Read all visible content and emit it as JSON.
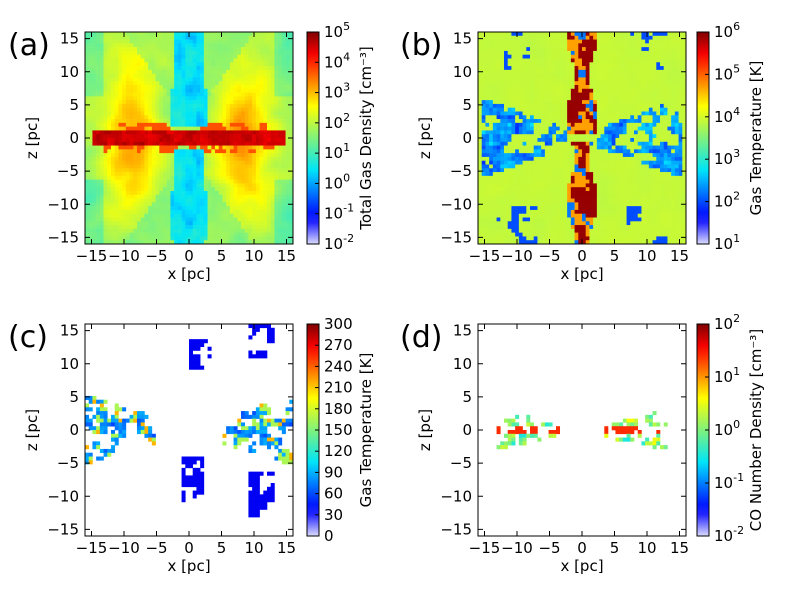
{
  "chart_data": [
    {
      "type": "heatmap",
      "panel": "(a)",
      "xlabel": "x [pc]",
      "ylabel": "z [pc]",
      "xlim": [
        -16,
        16
      ],
      "ylim": [
        -16,
        16
      ],
      "xticks": [
        "−15",
        "−10",
        "−5",
        "0",
        "5",
        "10",
        "15"
      ],
      "xtick_values": [
        -15,
        -10,
        -5,
        0,
        5,
        10,
        15
      ],
      "yticks": [
        "15",
        "10",
        "5",
        "0",
        "−5",
        "−10",
        "−15"
      ],
      "ytick_values": [
        15,
        10,
        5,
        0,
        -5,
        -10,
        -15
      ],
      "colorbar": {
        "label": "Total Gas Density [cm⁻³]",
        "scale": "log",
        "ticks": [
          {
            "base": "10",
            "exp": "5",
            "value": 5
          },
          {
            "base": "10",
            "exp": "4",
            "value": 4
          },
          {
            "base": "10",
            "exp": "3",
            "value": 3
          },
          {
            "base": "10",
            "exp": "2",
            "value": 2
          },
          {
            "base": "10",
            "exp": "1",
            "value": 1
          },
          {
            "base": "10",
            "exp": "0",
            "value": 0
          },
          {
            "base": "10",
            "exp": "-1",
            "value": -1
          },
          {
            "base": "10",
            "exp": "-2",
            "value": -2
          }
        ],
        "range": [
          -2,
          5
        ]
      },
      "field": "density"
    },
    {
      "type": "heatmap",
      "panel": "(b)",
      "xlabel": "x [pc]",
      "ylabel": "z [pc]",
      "xlim": [
        -16,
        16
      ],
      "ylim": [
        -16,
        16
      ],
      "xticks": [
        "−15",
        "−10",
        "−5",
        "0",
        "5",
        "10",
        "15"
      ],
      "xtick_values": [
        -15,
        -10,
        -5,
        0,
        5,
        10,
        15
      ],
      "yticks": [
        "15",
        "10",
        "5",
        "0",
        "−5",
        "−10",
        "−15"
      ],
      "ytick_values": [
        15,
        10,
        5,
        0,
        -5,
        -10,
        -15
      ],
      "colorbar": {
        "label": "Gas Temperature [K]",
        "scale": "log",
        "ticks": [
          {
            "base": "10",
            "exp": "6",
            "value": 6
          },
          {
            "base": "10",
            "exp": "5",
            "value": 5
          },
          {
            "base": "10",
            "exp": "4",
            "value": 4
          },
          {
            "base": "10",
            "exp": "3",
            "value": 3
          },
          {
            "base": "10",
            "exp": "2",
            "value": 2
          },
          {
            "base": "10",
            "exp": "1",
            "value": 1
          }
        ],
        "range": [
          1,
          6
        ]
      },
      "field": "temperature"
    },
    {
      "type": "heatmap",
      "panel": "(c)",
      "xlabel": "x [pc]",
      "ylabel": "z [pc]",
      "xlim": [
        -16,
        16
      ],
      "ylim": [
        -16,
        16
      ],
      "xticks": [
        "−15",
        "−10",
        "−5",
        "0",
        "5",
        "10",
        "15"
      ],
      "xtick_values": [
        -15,
        -10,
        -5,
        0,
        5,
        10,
        15
      ],
      "yticks": [
        "15",
        "10",
        "5",
        "0",
        "−5",
        "−10",
        "−15"
      ],
      "ytick_values": [
        15,
        10,
        5,
        0,
        -5,
        -10,
        -15
      ],
      "colorbar": {
        "label": "Gas Temperature [K]",
        "scale": "linear",
        "ticks": [
          {
            "text": "300",
            "value": 300
          },
          {
            "text": "270",
            "value": 270
          },
          {
            "text": "240",
            "value": 240
          },
          {
            "text": "210",
            "value": 210
          },
          {
            "text": "180",
            "value": 180
          },
          {
            "text": "150",
            "value": 150
          },
          {
            "text": "120",
            "value": 120
          },
          {
            "text": "90",
            "value": 90
          },
          {
            "text": "60",
            "value": 60
          },
          {
            "text": "30",
            "value": 30
          },
          {
            "text": "0",
            "value": 0
          }
        ],
        "range": [
          0,
          300
        ]
      },
      "field": "cold_temperature"
    },
    {
      "type": "heatmap",
      "panel": "(d)",
      "xlabel": "x [pc]",
      "ylabel": "z [pc]",
      "xlim": [
        -16,
        16
      ],
      "ylim": [
        -16,
        16
      ],
      "xticks": [
        "−15",
        "−10",
        "−5",
        "0",
        "5",
        "10",
        "15"
      ],
      "xtick_values": [
        -15,
        -10,
        -5,
        0,
        5,
        10,
        15
      ],
      "yticks": [
        "15",
        "10",
        "5",
        "0",
        "−5",
        "−10",
        "−15"
      ],
      "ytick_values": [
        15,
        10,
        5,
        0,
        -5,
        -10,
        -15
      ],
      "colorbar": {
        "label": "CO Number Density [cm⁻³]",
        "scale": "log",
        "ticks": [
          {
            "base": "10",
            "exp": "2",
            "value": 2
          },
          {
            "base": "10",
            "exp": "1",
            "value": 1
          },
          {
            "base": "10",
            "exp": "0",
            "value": 0
          },
          {
            "base": "10",
            "exp": "-1",
            "value": -1
          },
          {
            "base": "10",
            "exp": "-2",
            "value": -2
          }
        ],
        "range": [
          -2,
          2
        ]
      },
      "field": "co_density"
    }
  ]
}
